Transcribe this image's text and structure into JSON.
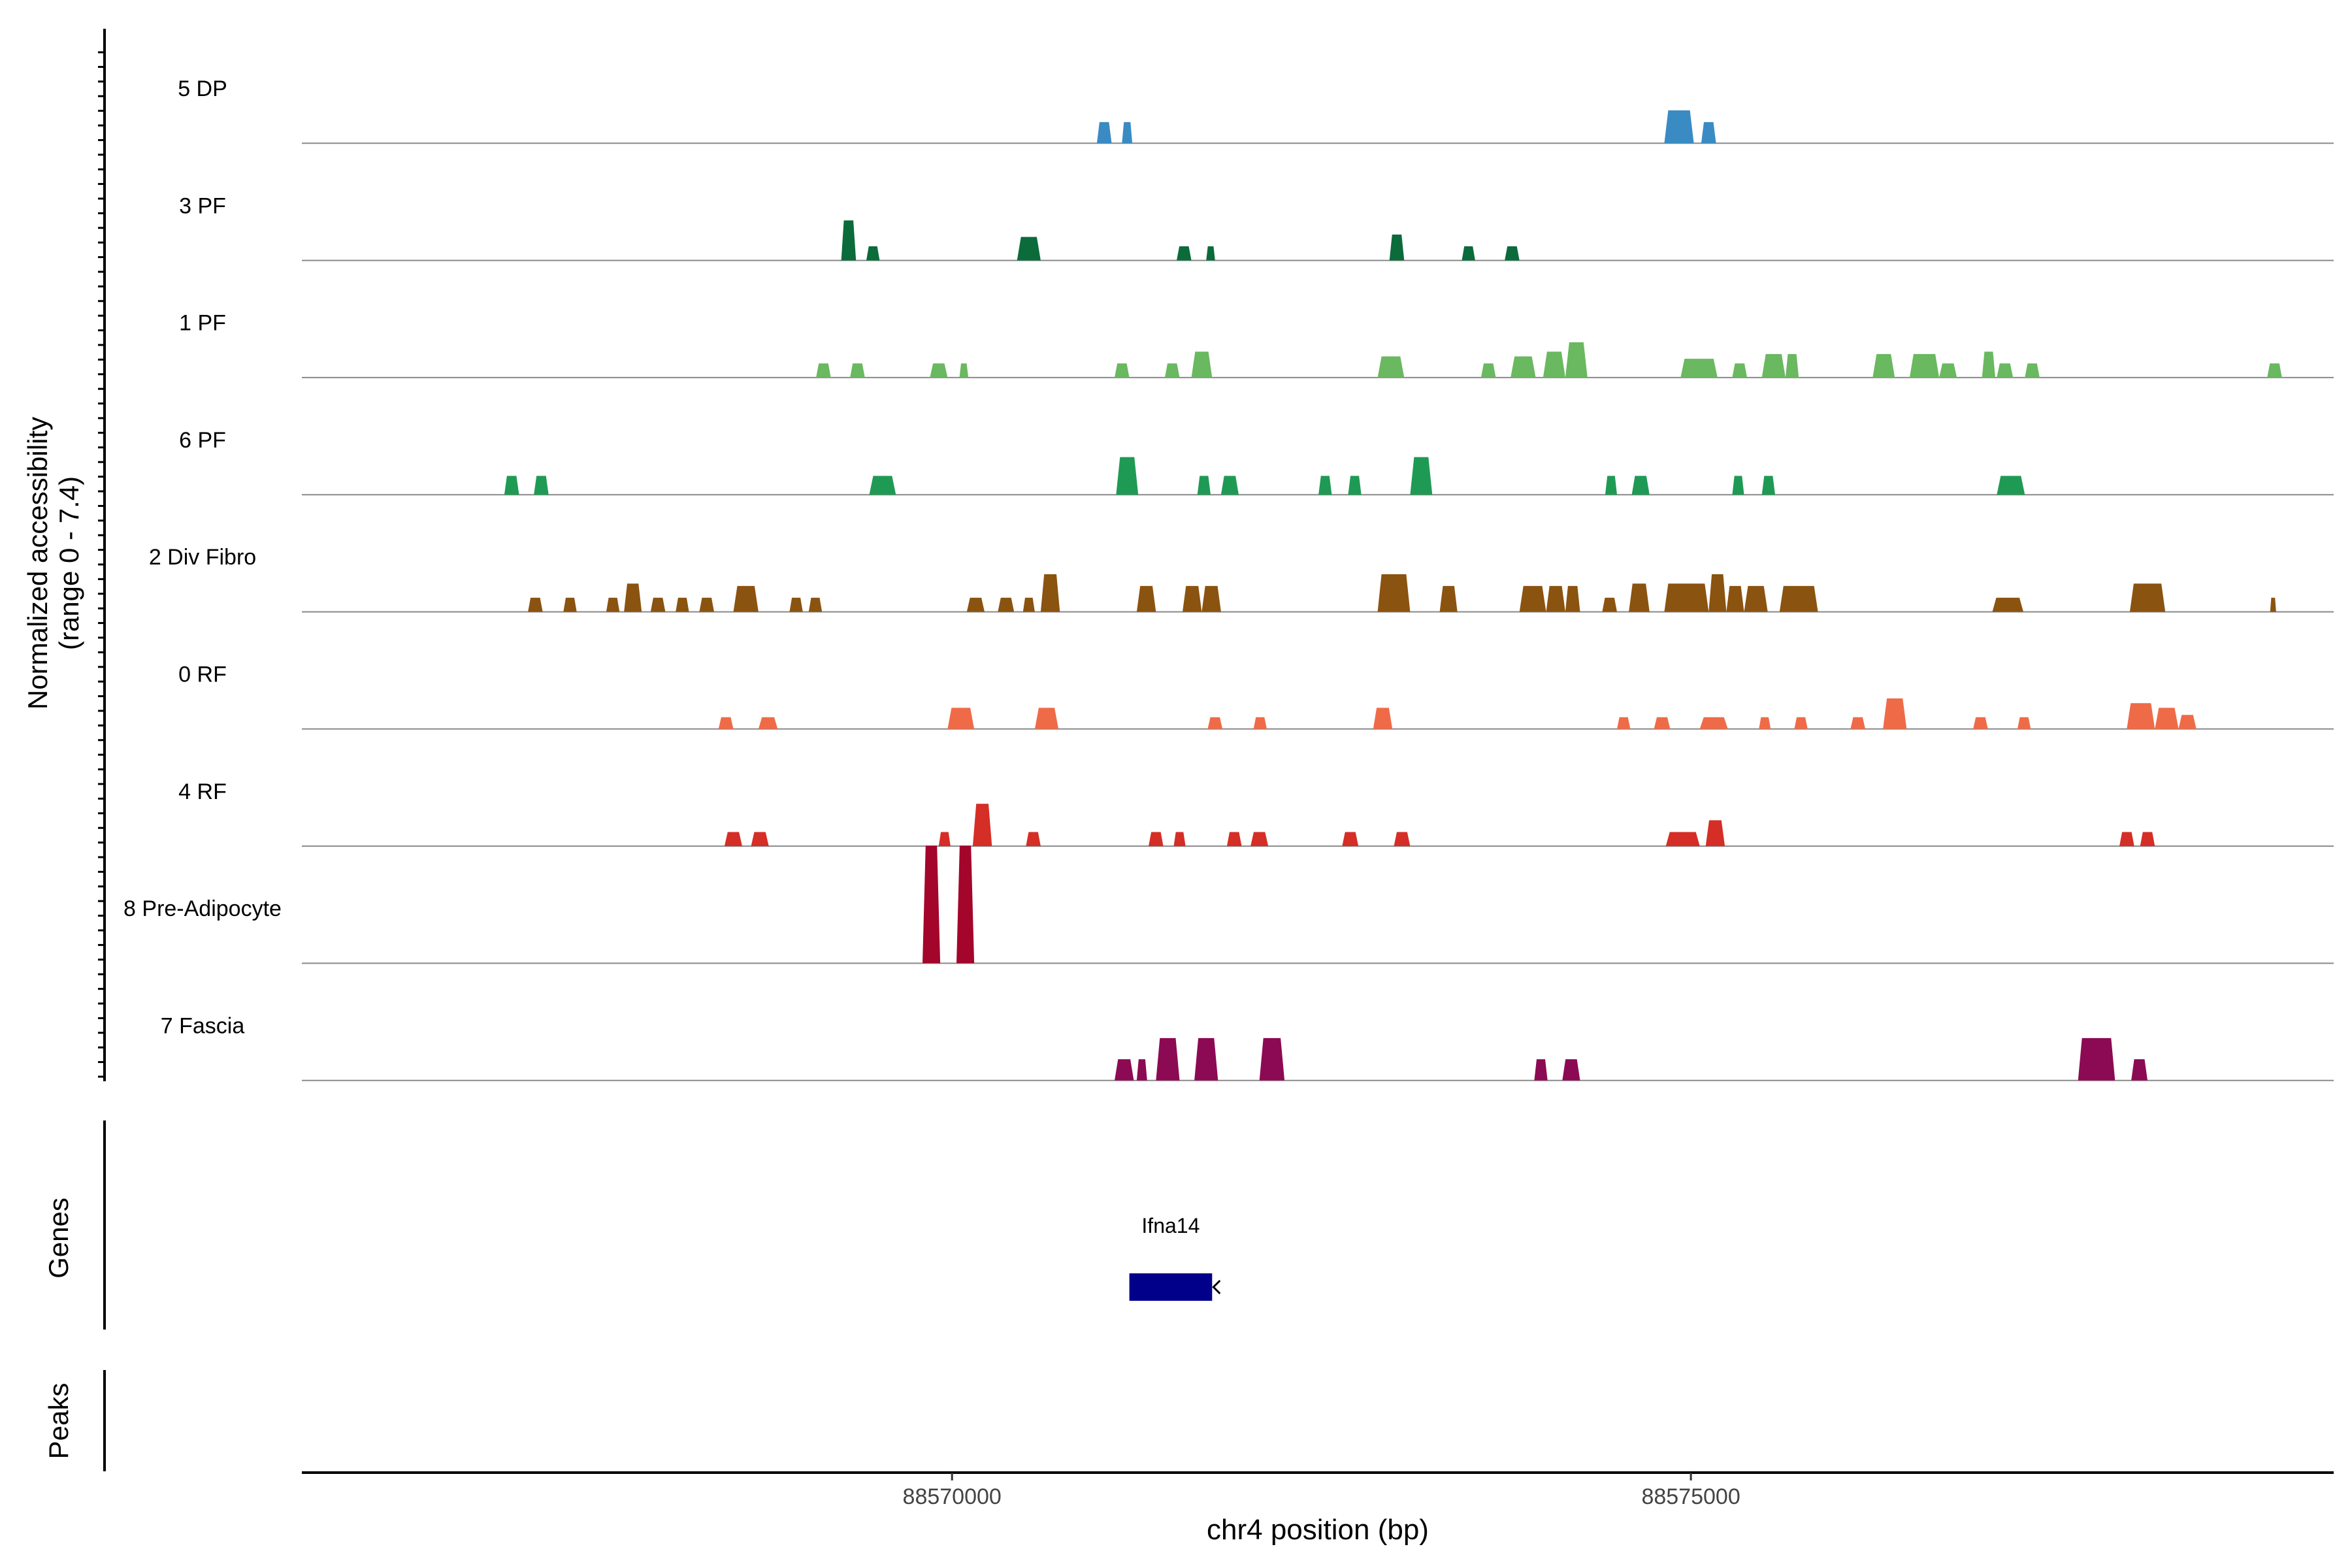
{
  "chart_data": {
    "type": "area",
    "title": "",
    "ylabel_line1": "Normalized accessibility",
    "ylabel_line2": "(range 0 - 7.4)",
    "xlabel": "chr4 position (bp)",
    "xlim": [
      88565600,
      88579350
    ],
    "ylim": [
      0,
      7.4
    ],
    "x_ticks": [
      88570000,
      88575000
    ],
    "x_tick_labels": [
      "88570000",
      "88575000"
    ],
    "section_labels": {
      "genes": "Genes",
      "peaks": "Peaks"
    },
    "tracks": [
      {
        "name": "5 DP",
        "color": "#3a8bc4",
        "peaks": [
          [
            88570980,
            88571080,
            0.45
          ],
          [
            88571150,
            88571220,
            0.45
          ],
          [
            88574820,
            88575020,
            0.7
          ],
          [
            88575070,
            88575170,
            0.45
          ]
        ]
      },
      {
        "name": "3 PF",
        "color": "#0b6b3b",
        "peaks": [
          [
            88569250,
            88569350,
            0.85
          ],
          [
            88569420,
            88569510,
            0.3
          ],
          [
            88570440,
            88570600,
            0.5
          ],
          [
            88571520,
            88571620,
            0.3
          ],
          [
            88571720,
            88571780,
            0.3
          ],
          [
            88572960,
            88573060,
            0.55
          ],
          [
            88573450,
            88573540,
            0.3
          ],
          [
            88573740,
            88573840,
            0.3
          ]
        ]
      },
      {
        "name": "1 PF",
        "color": "#6ab860",
        "peaks": [
          [
            88569080,
            88569180,
            0.3
          ],
          [
            88569310,
            88569410,
            0.3
          ],
          [
            88569850,
            88569970,
            0.3
          ],
          [
            88570050,
            88570110,
            0.3
          ],
          [
            88571100,
            88571200,
            0.3
          ],
          [
            88571440,
            88571540,
            0.3
          ],
          [
            88571620,
            88571760,
            0.55
          ],
          [
            88572880,
            88573060,
            0.45
          ],
          [
            88573580,
            88573680,
            0.3
          ],
          [
            88573780,
            88573950,
            0.45
          ],
          [
            88574000,
            88574150,
            0.55
          ],
          [
            88574150,
            88574300,
            0.75
          ],
          [
            88574930,
            88575180,
            0.4
          ],
          [
            88575280,
            88575380,
            0.3
          ],
          [
            88575480,
            88575640,
            0.5
          ],
          [
            88575640,
            88575730,
            0.5
          ],
          [
            88576230,
            88576380,
            0.5
          ],
          [
            88576480,
            88576680,
            0.5
          ],
          [
            88576680,
            88576800,
            0.3
          ],
          [
            88576970,
            88577060,
            0.55
          ],
          [
            88577070,
            88577180,
            0.3
          ],
          [
            88577260,
            88577360,
            0.3
          ],
          [
            88578900,
            88579000,
            0.3
          ]
        ]
      },
      {
        "name": "6 PF",
        "color": "#1f9a55",
        "peaks": [
          [
            88566970,
            88567070,
            0.4
          ],
          [
            88567170,
            88567270,
            0.4
          ],
          [
            88569440,
            88569620,
            0.4
          ],
          [
            88571110,
            88571260,
            0.8
          ],
          [
            88571660,
            88571750,
            0.4
          ],
          [
            88571820,
            88571940,
            0.4
          ],
          [
            88572480,
            88572570,
            0.4
          ],
          [
            88572680,
            88572770,
            0.4
          ],
          [
            88573100,
            88573250,
            0.8
          ],
          [
            88574420,
            88574500,
            0.4
          ],
          [
            88574600,
            88574720,
            0.4
          ],
          [
            88575280,
            88575360,
            0.4
          ],
          [
            88575480,
            88575570,
            0.4
          ],
          [
            88577070,
            88577260,
            0.4
          ]
        ]
      },
      {
        "name": "2 Div Fibro",
        "color": "#8b5310",
        "peaks": [
          [
            88567130,
            88567230,
            0.3
          ],
          [
            88567370,
            88567460,
            0.3
          ],
          [
            88567660,
            88567750,
            0.3
          ],
          [
            88567780,
            88567900,
            0.6
          ],
          [
            88567960,
            88568060,
            0.3
          ],
          [
            88568130,
            88568220,
            0.3
          ],
          [
            88568290,
            88568390,
            0.3
          ],
          [
            88568520,
            88568690,
            0.55
          ],
          [
            88568900,
            88568990,
            0.3
          ],
          [
            88569030,
            88569120,
            0.3
          ],
          [
            88570100,
            88570220,
            0.3
          ],
          [
            88570310,
            88570420,
            0.3
          ],
          [
            88570480,
            88570560,
            0.3
          ],
          [
            88570600,
            88570730,
            0.8
          ],
          [
            88571250,
            88571380,
            0.55
          ],
          [
            88571560,
            88571690,
            0.55
          ],
          [
            88571690,
            88571820,
            0.55
          ],
          [
            88572880,
            88573100,
            0.8
          ],
          [
            88573300,
            88573420,
            0.55
          ],
          [
            88573840,
            88574020,
            0.55
          ],
          [
            88574020,
            88574150,
            0.55
          ],
          [
            88574150,
            88574250,
            0.55
          ],
          [
            88574400,
            88574500,
            0.3
          ],
          [
            88574580,
            88574720,
            0.6
          ],
          [
            88574820,
            88575120,
            0.6
          ],
          [
            88575120,
            88575240,
            0.8
          ],
          [
            88575240,
            88575360,
            0.55
          ],
          [
            88575360,
            88575520,
            0.55
          ],
          [
            88575600,
            88575860,
            0.55
          ],
          [
            88577040,
            88577250,
            0.3
          ],
          [
            88577970,
            88578210,
            0.6
          ],
          [
            88578920,
            88578960,
            0.3
          ]
        ]
      },
      {
        "name": "0 RF",
        "color": "#ef6b48",
        "peaks": [
          [
            88568420,
            88568520,
            0.25
          ],
          [
            88568690,
            88568820,
            0.25
          ],
          [
            88569970,
            88570150,
            0.45
          ],
          [
            88570560,
            88570720,
            0.45
          ],
          [
            88571730,
            88571830,
            0.25
          ],
          [
            88572040,
            88572130,
            0.25
          ],
          [
            88572850,
            88572980,
            0.45
          ],
          [
            88574500,
            88574590,
            0.25
          ],
          [
            88574750,
            88574860,
            0.25
          ],
          [
            88575060,
            88575250,
            0.25
          ],
          [
            88575460,
            88575540,
            0.25
          ],
          [
            88575700,
            88575790,
            0.25
          ],
          [
            88576080,
            88576180,
            0.25
          ],
          [
            88576300,
            88576460,
            0.65
          ],
          [
            88576910,
            88577010,
            0.25
          ],
          [
            88577210,
            88577300,
            0.25
          ],
          [
            88577950,
            88578140,
            0.55
          ],
          [
            88578140,
            88578300,
            0.45
          ],
          [
            88578300,
            88578420,
            0.3
          ]
        ]
      },
      {
        "name": "4 RF",
        "color": "#d42e26",
        "peaks": [
          [
            88568460,
            88568580,
            0.3
          ],
          [
            88568640,
            88568760,
            0.3
          ],
          [
            88569910,
            88569990,
            0.3
          ],
          [
            88570140,
            88570270,
            0.9
          ],
          [
            88570500,
            88570600,
            0.3
          ],
          [
            88571330,
            88571430,
            0.3
          ],
          [
            88571500,
            88571580,
            0.3
          ],
          [
            88571860,
            88571960,
            0.3
          ],
          [
            88572020,
            88572140,
            0.3
          ],
          [
            88572640,
            88572750,
            0.3
          ],
          [
            88572990,
            88573100,
            0.3
          ],
          [
            88574830,
            88575060,
            0.3
          ],
          [
            88575100,
            88575230,
            0.55
          ],
          [
            88577900,
            88578000,
            0.3
          ],
          [
            88578040,
            88578140,
            0.3
          ]
        ]
      },
      {
        "name": "8 Pre-Adipocyte",
        "color": "#a3052b",
        "peaks": [
          [
            88569800,
            88569920,
            2.5
          ],
          [
            88570030,
            88570150,
            2.5
          ]
        ]
      },
      {
        "name": "7 Fascia",
        "color": "#8c0a54",
        "peaks": [
          [
            88571100,
            88571230,
            0.45
          ],
          [
            88571250,
            88571320,
            0.45
          ],
          [
            88571380,
            88571540,
            0.9
          ],
          [
            88571640,
            88571800,
            0.9
          ],
          [
            88572080,
            88572250,
            0.9
          ],
          [
            88573940,
            88574030,
            0.45
          ],
          [
            88574130,
            88574250,
            0.45
          ],
          [
            88577620,
            88577870,
            0.9
          ],
          [
            88577980,
            88578090,
            0.45
          ]
        ]
      }
    ],
    "genes": [
      {
        "name": "Ifna14",
        "start": 88571200,
        "end": 88571760,
        "strand": "-"
      }
    ]
  }
}
